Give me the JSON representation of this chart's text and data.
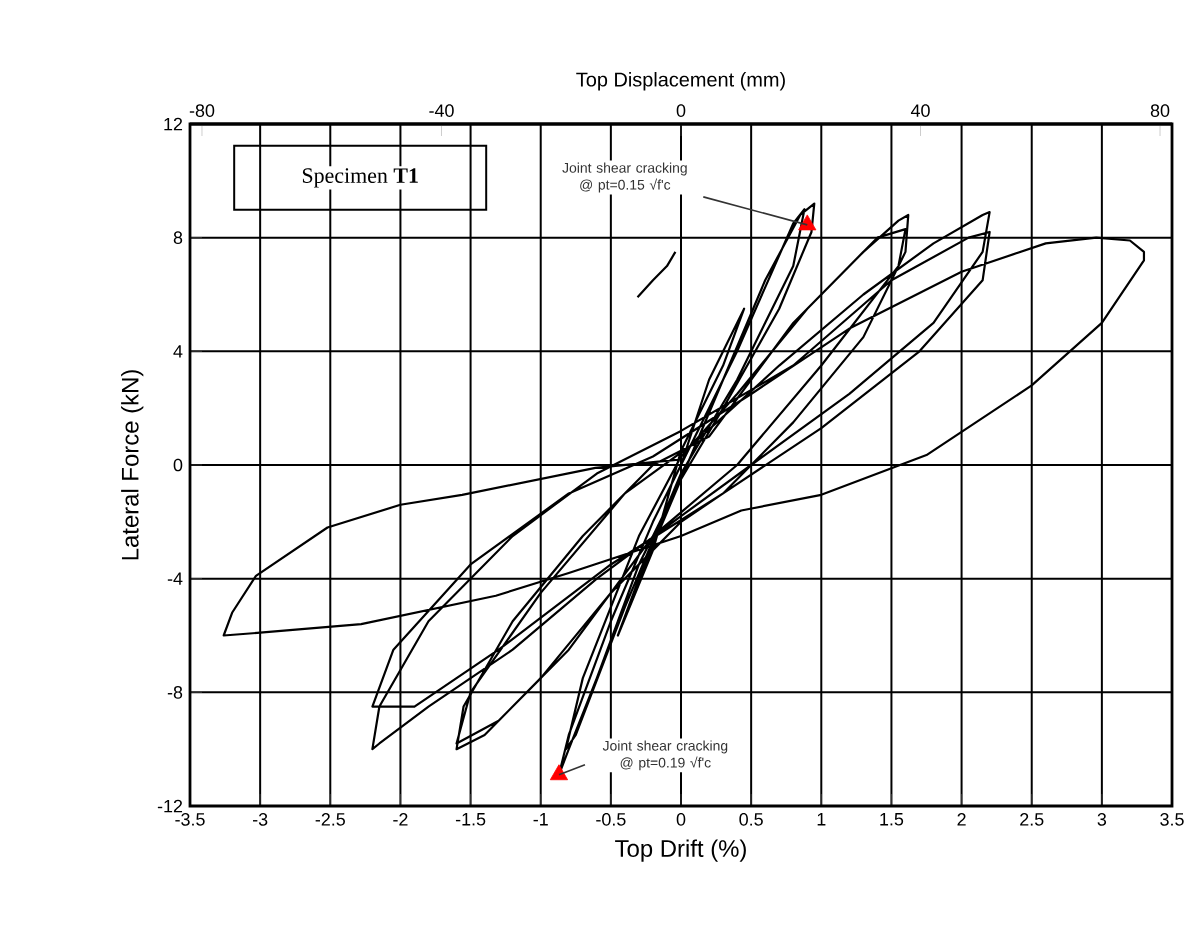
{
  "chart_data": {
    "type": "line",
    "xlabel": "Top Drift (%)",
    "ylabel": "Lateral Force (kN)",
    "x2label": "Top Displacement (mm)",
    "xlim": [
      -3.5,
      3.5
    ],
    "ylim": [
      -12,
      12
    ],
    "x2lim": [
      -82,
      82
    ],
    "xticks": [
      -3.5,
      -3,
      -2.5,
      -2,
      -1.5,
      -1,
      -0.5,
      0,
      0.5,
      1,
      1.5,
      2,
      2.5,
      3,
      3.5
    ],
    "yticks": [
      -12,
      -8,
      -4,
      0,
      4,
      8,
      12
    ],
    "x2ticks": [
      -80,
      -40,
      0,
      40,
      80
    ],
    "grid": true,
    "series": [
      {
        "color": "#000000",
        "marker": "none",
        "x": [
          0,
          0.2,
          0.45,
          0.3,
          0,
          -0.2,
          -0.45,
          -0.3,
          0,
          0.3,
          0.6,
          0.85,
          0.95,
          0.93,
          0.7,
          0.3,
          0,
          -0.3,
          -0.6,
          -0.8,
          -0.87,
          -0.8,
          -0.5,
          -0.2,
          0,
          0.4,
          0.8,
          0.88,
          0.8,
          0.4,
          0,
          -0.4,
          -0.75,
          -0.82,
          -0.7,
          -0.3,
          0,
          0.4,
          0.9,
          1.3,
          1.55,
          1.62,
          1.6,
          1.3,
          0.8,
          0.3,
          0,
          -0.5,
          -1,
          -1.4,
          -1.6,
          -1.55,
          -1.2,
          -0.7,
          -0.2,
          0.2,
          0.8,
          1.4,
          1.6,
          1.55,
          1,
          0.4,
          -0.2,
          -0.8,
          -1.3,
          -1.6,
          -1.5,
          -1,
          -0.4,
          0.1,
          0.7,
          1.3,
          1.8,
          2.15,
          2.2,
          2.15,
          1.8,
          1.2,
          0.5,
          0,
          -0.6,
          -1.2,
          -1.8,
          -2.15,
          -2.2,
          -2.15,
          -1.8,
          -1.2,
          -0.6,
          0,
          0.8,
          1.5,
          2.05,
          2.2,
          2.15,
          1.7,
          1,
          0.3,
          -0.5,
          -1.3,
          -1.9,
          -2.2,
          -2.05,
          -1.5,
          -0.8,
          -0.2,
          0.5,
          1.2,
          2,
          2.6,
          2.96,
          3.2,
          3.3,
          3.3,
          3,
          2.5,
          1.75,
          1,
          0.43,
          0,
          -0.8,
          -1.32,
          -2.28,
          -3,
          -3.26,
          -3.2,
          -3.03,
          -2.52,
          -2,
          -1.56,
          -0.61,
          0
        ],
        "values": [
          0,
          3,
          5.5,
          3.5,
          0.5,
          -3,
          -6,
          -4,
          -0.5,
          3,
          6.5,
          8.8,
          9.2,
          8.2,
          5.5,
          2,
          -0.5,
          -3.5,
          -7.5,
          -10,
          -10.9,
          -9.5,
          -5.5,
          -2,
          0,
          4,
          8.5,
          9,
          7,
          3,
          -0.3,
          -5,
          -9.5,
          -10,
          -7.5,
          -2.5,
          0.3,
          2.5,
          5.5,
          7.5,
          8.6,
          8.8,
          7.5,
          4.5,
          1.5,
          -1,
          -2,
          -4.5,
          -7.5,
          -9.5,
          -10,
          -8.5,
          -5.5,
          -2.5,
          0,
          1,
          5,
          8,
          8.3,
          7,
          3.5,
          0,
          -2.5,
          -6.5,
          -9,
          -9.8,
          -8,
          -4.5,
          -1,
          0.8,
          3.5,
          6,
          7.8,
          8.8,
          8.9,
          7.5,
          5,
          2.5,
          0,
          -1.8,
          -4,
          -6.5,
          -8.5,
          -9.8,
          -10,
          -8.5,
          -5.5,
          -2.5,
          -0.3,
          1.2,
          3.5,
          6.5,
          8,
          8.2,
          6.5,
          4,
          1.3,
          -1,
          -3.5,
          -6.5,
          -8.5,
          -8.5,
          -6.5,
          -3.5,
          -1,
          0.3,
          2.5,
          4.8,
          6.8,
          7.8,
          8,
          7.9,
          7.5,
          7.2,
          5,
          2.8,
          0.35,
          -1.05,
          -1.6,
          -2.5,
          -3.8,
          -4.6,
          -5.6,
          -5.9,
          -6,
          -5.2,
          -3.9,
          -2.2,
          -1.4,
          -1.05,
          -0.1,
          0.2
        ]
      },
      {
        "type": "line",
        "color": "#000000",
        "marker": "none",
        "x": [
          -0.31,
          -0.2,
          -0.1,
          -0.04
        ],
        "values": [
          5.9,
          6.5,
          7.0,
          7.5
        ]
      },
      {
        "type": "scatter",
        "color": "#ff0000",
        "marker": "triangle",
        "x": [
          0.9,
          -0.87
        ],
        "values": [
          8.45,
          -10.9
        ]
      }
    ],
    "annotations": [
      "Specimen **T1**",
      {
        "text": "Joint shear cracking @ pt=0.15 √f'c",
        "x": 0.9,
        "y": 8.45
      },
      {
        "text": "Joint shear cracking @ pt=0.19 √f'c",
        "x": -0.87,
        "y": -10.9
      }
    ]
  }
}
